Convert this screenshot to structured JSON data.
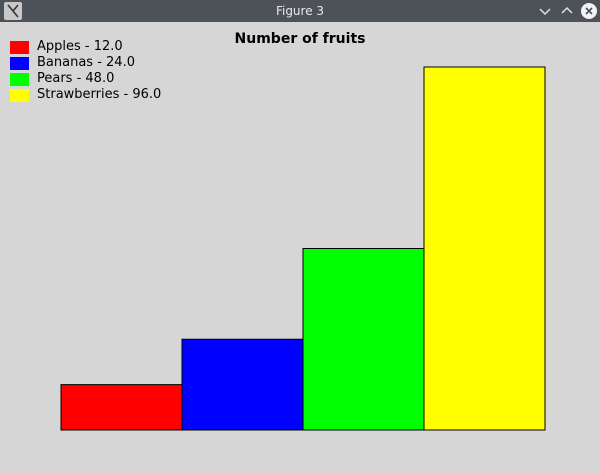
{
  "window": {
    "title": "Figure 3"
  },
  "titlebar_icons": {
    "minimize": "chevron-down-icon",
    "maximize": "chevron-up-icon",
    "close": "close-icon",
    "app": "app-icon"
  },
  "chart_data": {
    "type": "bar",
    "title": "Number of fruits",
    "categories": [
      "Apples",
      "Bananas",
      "Pears",
      "Strawberries"
    ],
    "values": [
      12.0,
      24.0,
      48.0,
      96.0
    ],
    "colors": [
      "#ff0000",
      "#0000ff",
      "#00ff00",
      "#ffff00"
    ],
    "legend": [
      "Apples - 12.0",
      "Bananas - 24.0",
      "Pears - 48.0",
      "Strawberries - 96.0"
    ],
    "legend_position": "top-left",
    "grid": false,
    "axes_visible": false,
    "ylim": [
      0,
      96
    ]
  }
}
